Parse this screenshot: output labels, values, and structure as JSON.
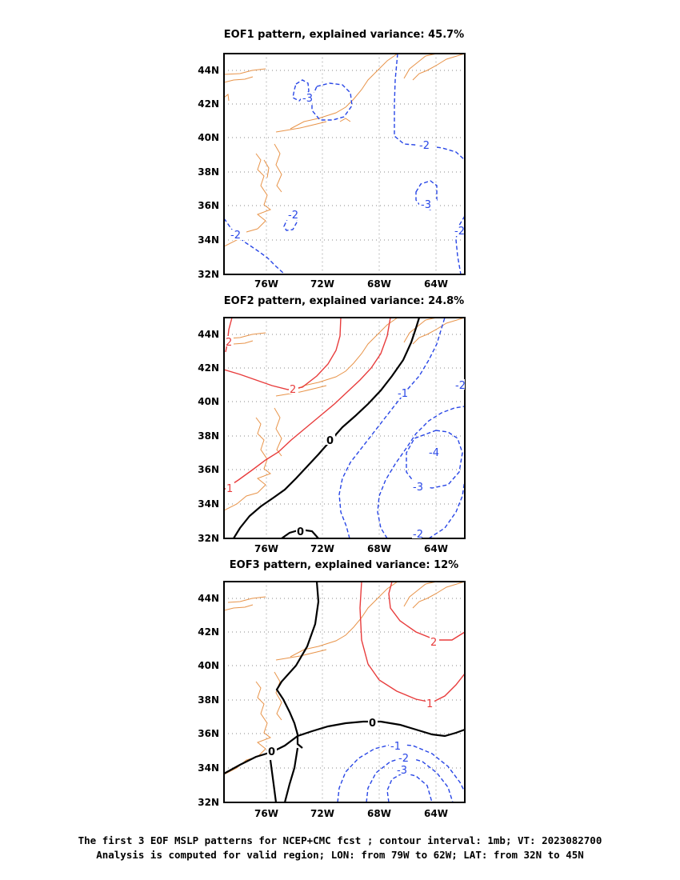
{
  "panels": [
    {
      "title": "EOF1 pattern, explained variance: 45.7%",
      "contour_labels": [
        "-3",
        "-2",
        "-2",
        "-2",
        "-3",
        "-2"
      ]
    },
    {
      "title": "EOF2 pattern, explained variance: 24.8%",
      "contour_labels": [
        "2",
        "2",
        "1",
        "0",
        "0",
        "-1",
        "-2",
        "-4",
        "-3",
        "-2"
      ]
    },
    {
      "title": "EOF3 pattern, explained variance: 12%",
      "contour_labels": [
        "2",
        "1",
        "0",
        "0",
        "-1",
        "-2",
        "-3"
      ]
    }
  ],
  "axes": {
    "lat_ticks": [
      "44N",
      "42N",
      "40N",
      "38N",
      "36N",
      "34N",
      "32N"
    ],
    "lon_ticks": [
      "76W",
      "72W",
      "68W",
      "64W"
    ]
  },
  "caption": {
    "line1": "The first 3 EOF MSLP patterns for NCEP+CMC fcst ; contour interval: 1mb; VT: 2023082700",
    "line2": "Analysis is computed for valid region; LON: from 79W to 62W; LAT: from 32N to 45N"
  },
  "colors": {
    "positive": "#e83c3c",
    "negative": "#2846e6",
    "zero": "#000000",
    "coast": "#e8944a",
    "grid": "#888888"
  }
}
